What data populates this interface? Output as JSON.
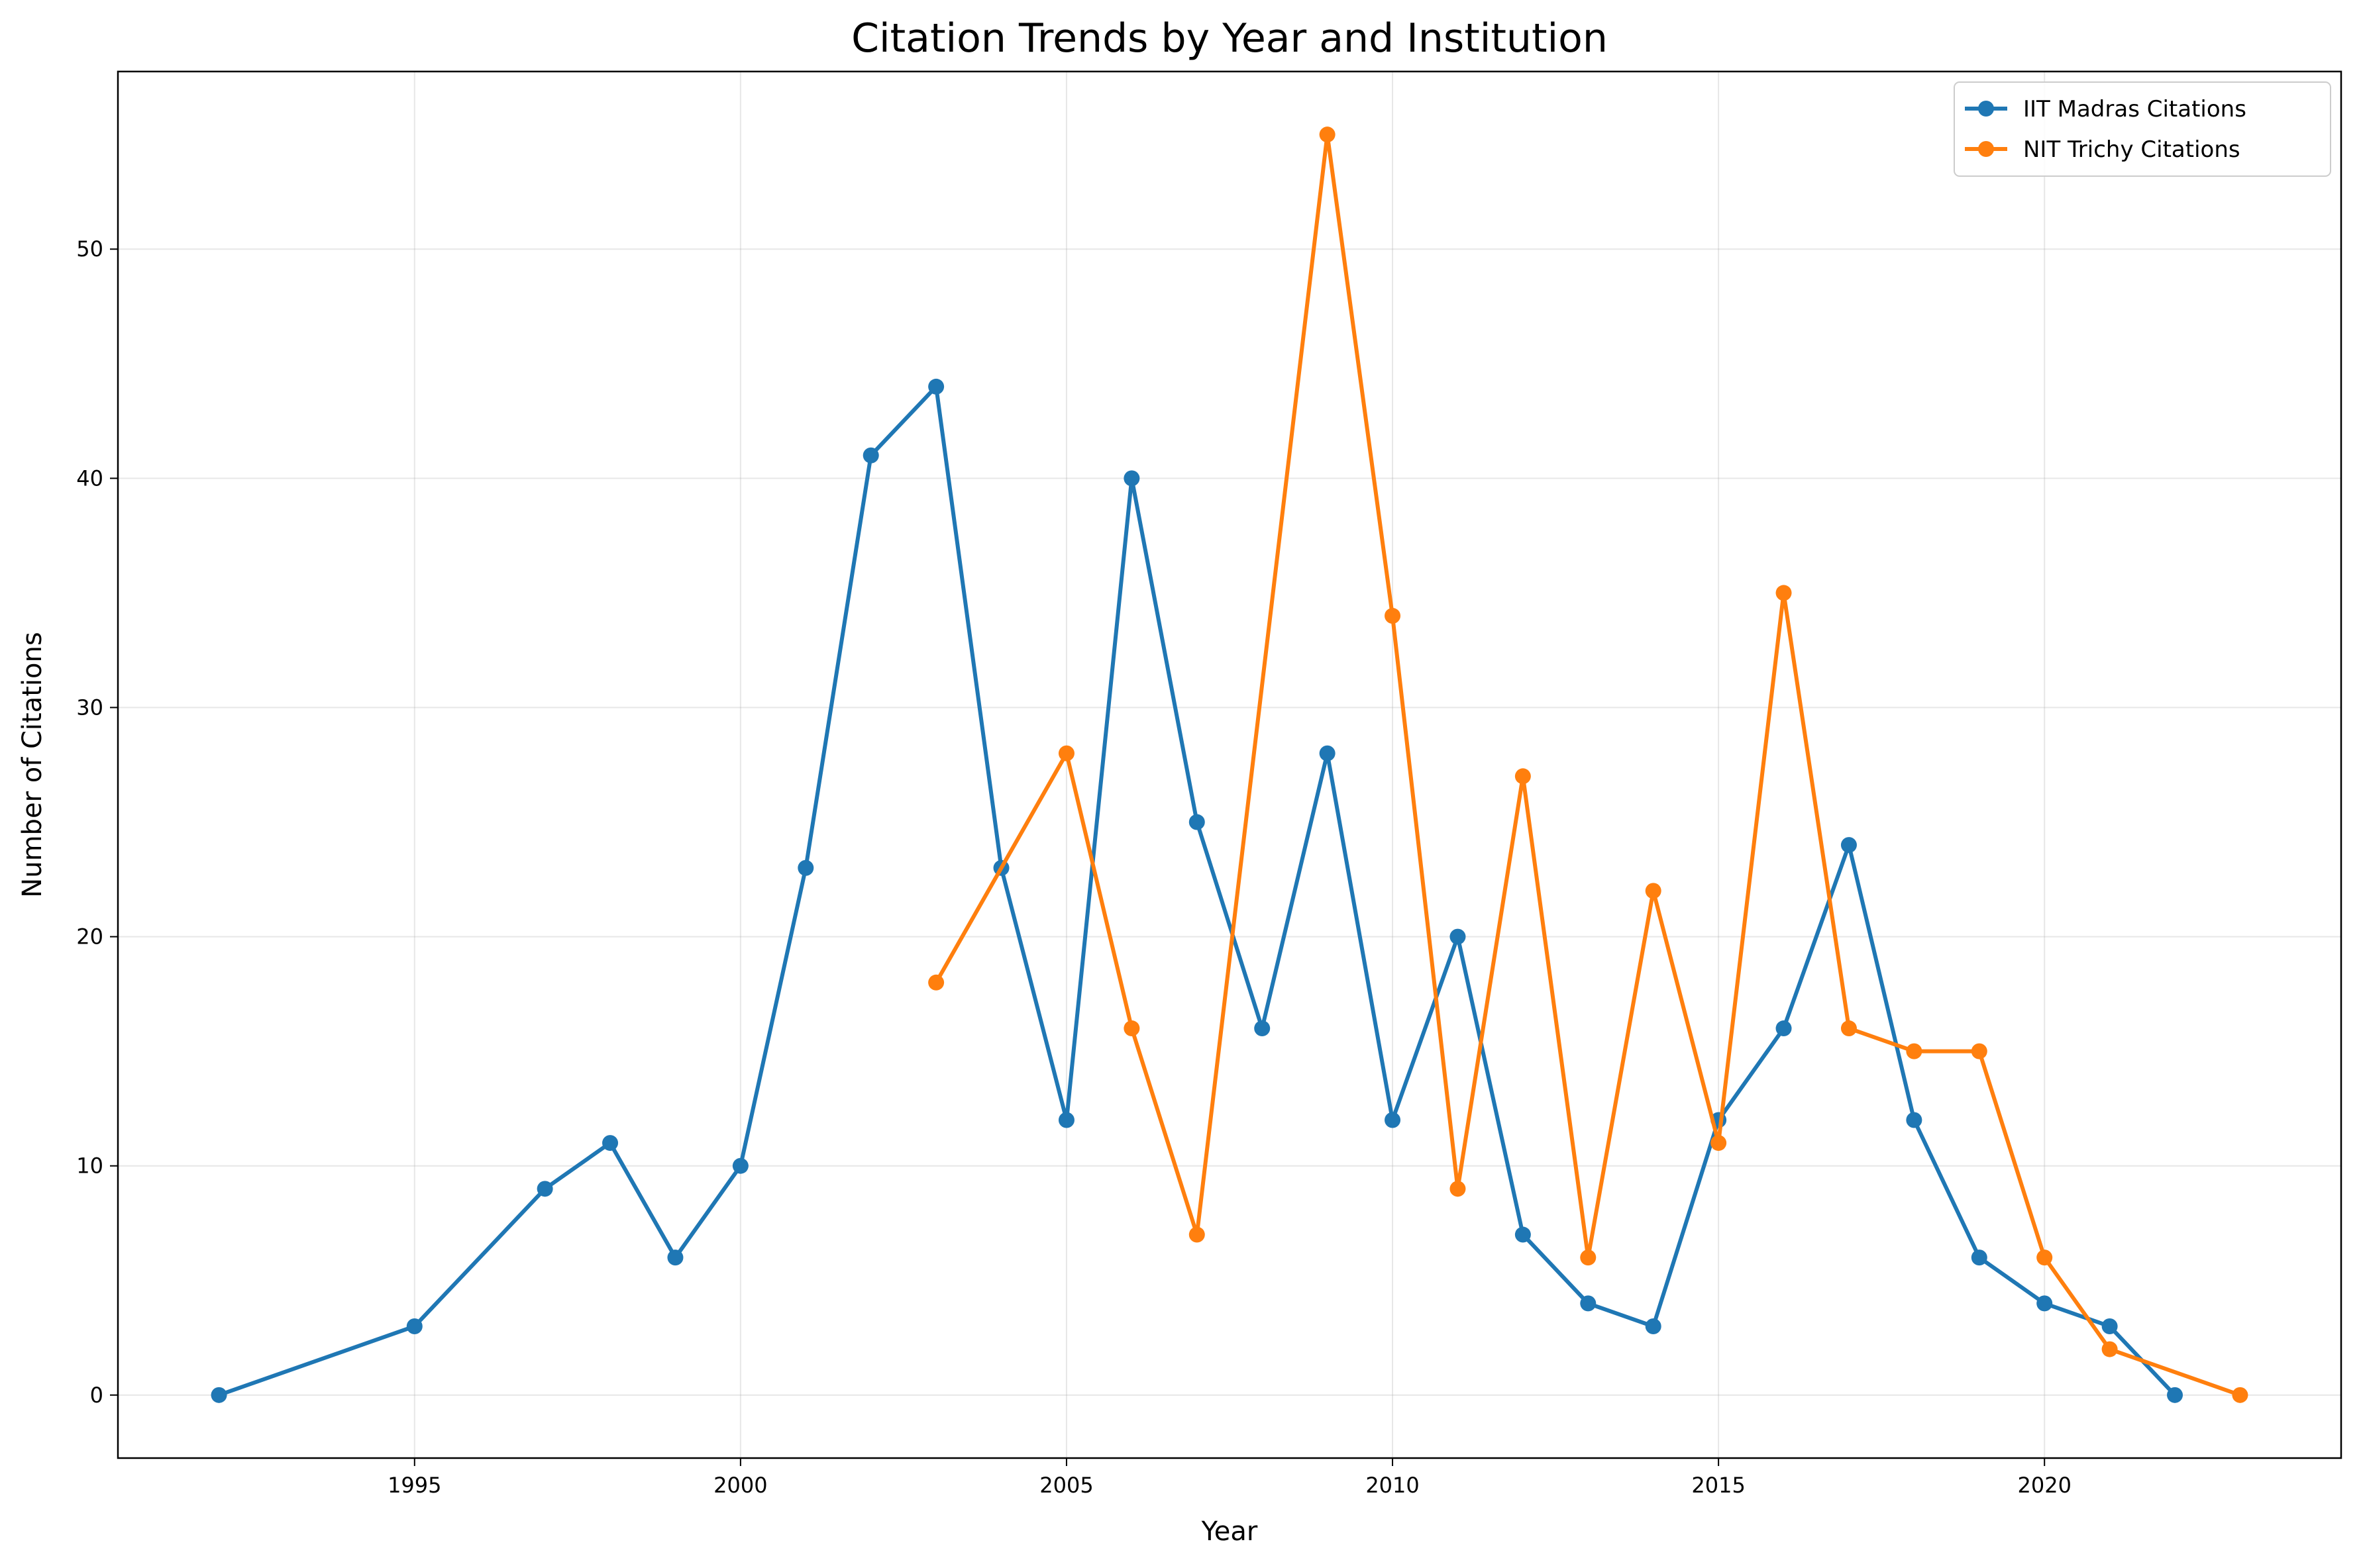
{
  "chart_data": {
    "type": "line",
    "title": "Citation Trends by Year and Institution",
    "xlabel": "Year",
    "ylabel": "Number of Citations",
    "xlim": [
      1990.45,
      2024.55
    ],
    "ylim": [
      -2.75,
      57.75
    ],
    "xticks": [
      1995,
      2000,
      2005,
      2010,
      2015,
      2020
    ],
    "yticks": [
      0,
      10,
      20,
      30,
      40,
      50
    ],
    "grid": true,
    "legend_position": "upper right",
    "series": [
      {
        "name": "IIT Madras Citations",
        "color": "#1f77b4",
        "x": [
          1992,
          1995,
          1997,
          1998,
          1999,
          2000,
          2001,
          2002,
          2003,
          2004,
          2005,
          2006,
          2007,
          2008,
          2009,
          2010,
          2011,
          2012,
          2013,
          2014,
          2015,
          2016,
          2017,
          2018,
          2019,
          2020,
          2021,
          2022
        ],
        "y": [
          0,
          3,
          9,
          11,
          6,
          10,
          23,
          41,
          44,
          23,
          12,
          40,
          25,
          16,
          28,
          12,
          20,
          7,
          4,
          3,
          12,
          16,
          24,
          12,
          6,
          4,
          3,
          0
        ]
      },
      {
        "name": "NIT Trichy Citations",
        "color": "#ff7f0e",
        "x": [
          2003,
          2005,
          2006,
          2007,
          2009,
          2010,
          2011,
          2012,
          2013,
          2014,
          2015,
          2016,
          2017,
          2018,
          2019,
          2020,
          2021,
          2023
        ],
        "y": [
          18,
          28,
          16,
          7,
          55,
          34,
          9,
          27,
          6,
          22,
          11,
          35,
          16,
          15,
          15,
          6,
          2,
          0
        ]
      }
    ]
  }
}
